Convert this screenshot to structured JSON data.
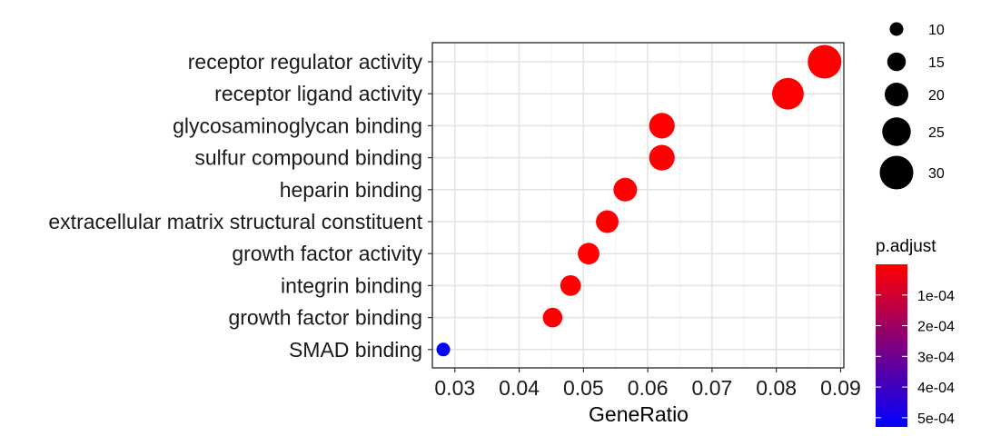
{
  "chart_data": {
    "type": "scatter",
    "x_label": "GeneRatio",
    "xlim": [
      0.0265,
      0.0905
    ],
    "x_ticks": [
      {
        "value": 0.03,
        "label": "0.03"
      },
      {
        "value": 0.04,
        "label": "0.04"
      },
      {
        "value": 0.05,
        "label": "0.05"
      },
      {
        "value": 0.06,
        "label": "0.06"
      },
      {
        "value": 0.07,
        "label": "0.07"
      },
      {
        "value": 0.08,
        "label": "0.08"
      },
      {
        "value": 0.09,
        "label": "0.09"
      }
    ],
    "categories": [
      "receptor regulator activity",
      "receptor ligand activity",
      "glycosaminoglycan binding",
      "sulfur compound binding",
      "heparin binding",
      "extracellular matrix structural constituent",
      "growth factor activity",
      "integrin binding",
      "growth factor binding",
      "SMAD binding"
    ],
    "points": [
      {
        "term": "receptor regulator activity",
        "gene_ratio": 0.0875,
        "count": 30,
        "p_adjust": 1e-08
      },
      {
        "term": "receptor ligand activity",
        "gene_ratio": 0.0818,
        "count": 28,
        "p_adjust": 1e-08
      },
      {
        "term": "glycosaminoglycan binding",
        "gene_ratio": 0.0622,
        "count": 22,
        "p_adjust": 1e-08
      },
      {
        "term": "sulfur compound binding",
        "gene_ratio": 0.0622,
        "count": 22,
        "p_adjust": 1e-08
      },
      {
        "term": "heparin binding",
        "gene_ratio": 0.0565,
        "count": 20,
        "p_adjust": 1e-08
      },
      {
        "term": "extracellular matrix structural constituent",
        "gene_ratio": 0.0537,
        "count": 19,
        "p_adjust": 1e-08
      },
      {
        "term": "growth factor activity",
        "gene_ratio": 0.0508,
        "count": 18,
        "p_adjust": 1e-08
      },
      {
        "term": "integrin binding",
        "gene_ratio": 0.048,
        "count": 17,
        "p_adjust": 1e-08
      },
      {
        "term": "growth factor binding",
        "gene_ratio": 0.0452,
        "count": 16,
        "p_adjust": 1e-08
      },
      {
        "term": "SMAD binding",
        "gene_ratio": 0.0282,
        "count": 10,
        "p_adjust": 0.00053
      }
    ],
    "size_legend": {
      "title": "",
      "entries": [
        {
          "count": 10,
          "label": "10"
        },
        {
          "count": 15,
          "label": "15"
        },
        {
          "count": 20,
          "label": "20"
        },
        {
          "count": 25,
          "label": "25"
        },
        {
          "count": 30,
          "label": "30"
        }
      ]
    },
    "color_legend": {
      "title": "p.adjust",
      "low_color": "#ff0000",
      "high_color": "#0000ff",
      "range": [
        0.0,
        0.00053
      ],
      "ticks": [
        {
          "value": 0.0001,
          "label": "1e-04"
        },
        {
          "value": 0.0002,
          "label": "2e-04"
        },
        {
          "value": 0.0003,
          "label": "3e-04"
        },
        {
          "value": 0.0004,
          "label": "4e-04"
        },
        {
          "value": 0.0005,
          "label": "5e-04"
        }
      ]
    },
    "grid": true,
    "legend_position": "right"
  }
}
